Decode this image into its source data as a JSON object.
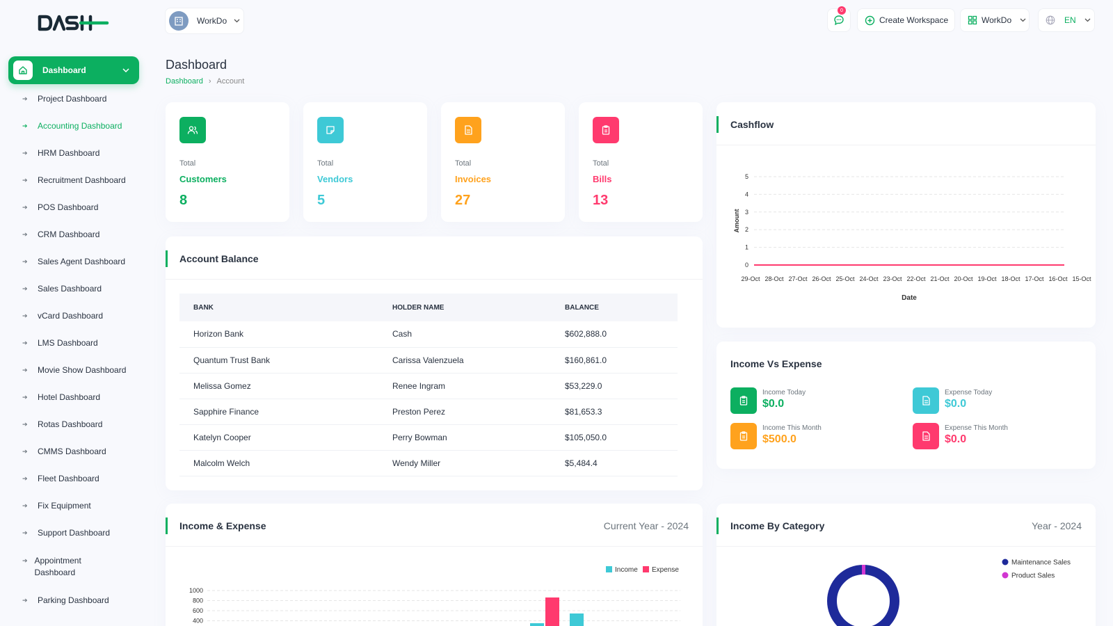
{
  "brand": {
    "logo_text": "DASH"
  },
  "sidebar": {
    "main": {
      "label": "Dashboard"
    },
    "items": [
      {
        "label": "Project Dashboard"
      },
      {
        "label": "Accounting Dashboard",
        "active": true
      },
      {
        "label": "HRM Dashboard"
      },
      {
        "label": "Recruitment Dashboard"
      },
      {
        "label": "POS Dashboard"
      },
      {
        "label": "CRM Dashboard"
      },
      {
        "label": "Sales Agent Dashboard"
      },
      {
        "label": "Sales Dashboard"
      },
      {
        "label": "vCard Dashboard"
      },
      {
        "label": "LMS Dashboard"
      },
      {
        "label": "Movie Show Dashboard"
      },
      {
        "label": "Hotel Dashboard"
      },
      {
        "label": "Rotas Dashboard"
      },
      {
        "label": "CMMS Dashboard"
      },
      {
        "label": "Fleet Dashboard"
      },
      {
        "label": "Fix Equipment"
      },
      {
        "label": "Support Dashboard"
      },
      {
        "label": "Appointment Dashboard"
      },
      {
        "label": "Parking Dashboard"
      }
    ]
  },
  "header": {
    "workspace": "WorkDo",
    "notif_count": "0",
    "create_workspace": "Create Workspace",
    "workspace_menu": "WorkDo",
    "language": "EN"
  },
  "page": {
    "title": "Dashboard",
    "breadcrumb": [
      "Dashboard",
      "Account"
    ]
  },
  "stats": [
    {
      "label": "Total",
      "name": "Customers",
      "value": "8",
      "color": "#0caf60"
    },
    {
      "label": "Total",
      "name": "Vendors",
      "value": "5",
      "color": "#3ec9d6"
    },
    {
      "label": "Total",
      "name": "Invoices",
      "value": "27",
      "color": "#ffa21d"
    },
    {
      "label": "Total",
      "name": "Bills",
      "value": "13",
      "color": "#ff3a6e"
    }
  ],
  "account_balance": {
    "title": "Account Balance",
    "columns": [
      "BANK",
      "HOLDER NAME",
      "BALANCE"
    ],
    "rows": [
      [
        "Horizon Bank",
        "Cash",
        "$602,888.0"
      ],
      [
        "Quantum Trust Bank",
        "Carissa Valenzuela",
        "$160,861.0"
      ],
      [
        "Melissa Gomez",
        "Renee Ingram",
        "$53,229.0"
      ],
      [
        "Sapphire Finance",
        "Preston Perez",
        "$81,653.3"
      ],
      [
        "Katelyn Cooper",
        "Perry Bowman",
        "$105,050.0"
      ],
      [
        "Malcolm Welch",
        "Wendy Miller",
        "$5,484.4"
      ]
    ]
  },
  "cashflow": {
    "title": "Cashflow"
  },
  "income_vs_expense": {
    "title": "Income Vs Expense",
    "items": [
      {
        "label": "Income Today",
        "value": "$0.0",
        "color": "#0caf60"
      },
      {
        "label": "Expense Today",
        "value": "$0.0",
        "color": "#3ec9d6"
      },
      {
        "label": "Income This Month",
        "value": "$500.0",
        "color": "#ffa21d"
      },
      {
        "label": "Expense This Month",
        "value": "$0.0",
        "color": "#ff3a6e"
      }
    ]
  },
  "income_expense": {
    "title": "Income & Expense",
    "period": "Current Year - 2024"
  },
  "income_by_category": {
    "title": "Income By Category",
    "period": "Year - 2024"
  },
  "chart_data": [
    {
      "type": "line",
      "xlabel": "Date",
      "ylabel": "Amount",
      "x": [
        "29-Oct",
        "28-Oct",
        "27-Oct",
        "26-Oct",
        "25-Oct",
        "24-Oct",
        "23-Oct",
        "22-Oct",
        "21-Oct",
        "20-Oct",
        "19-Oct",
        "18-Oct",
        "17-Oct",
        "16-Oct",
        "15-Oct"
      ],
      "y_ticks": [
        0,
        1,
        2,
        3,
        4,
        5
      ],
      "ylim": [
        0,
        5
      ],
      "series": [
        {
          "values": [
            0,
            0,
            0,
            0,
            0,
            0,
            0,
            0,
            0,
            0,
            0,
            0,
            0,
            0,
            0
          ],
          "color": "#ff3a6e"
        }
      ],
      "grid": true
    },
    {
      "type": "bar",
      "y_ticks_visible": [
        400,
        600,
        800,
        1000
      ],
      "legend": "top-right",
      "series": [
        {
          "name": "Income",
          "color": "#3ec9d6"
        },
        {
          "name": "Expense",
          "color": "#ff3a6e"
        }
      ]
    },
    {
      "type": "pie",
      "legend": "right",
      "series": [
        {
          "name": "Maintenance Sales",
          "color": "#1e2a9a"
        },
        {
          "name": "Product Sales",
          "color": "#d136d1"
        }
      ]
    }
  ]
}
